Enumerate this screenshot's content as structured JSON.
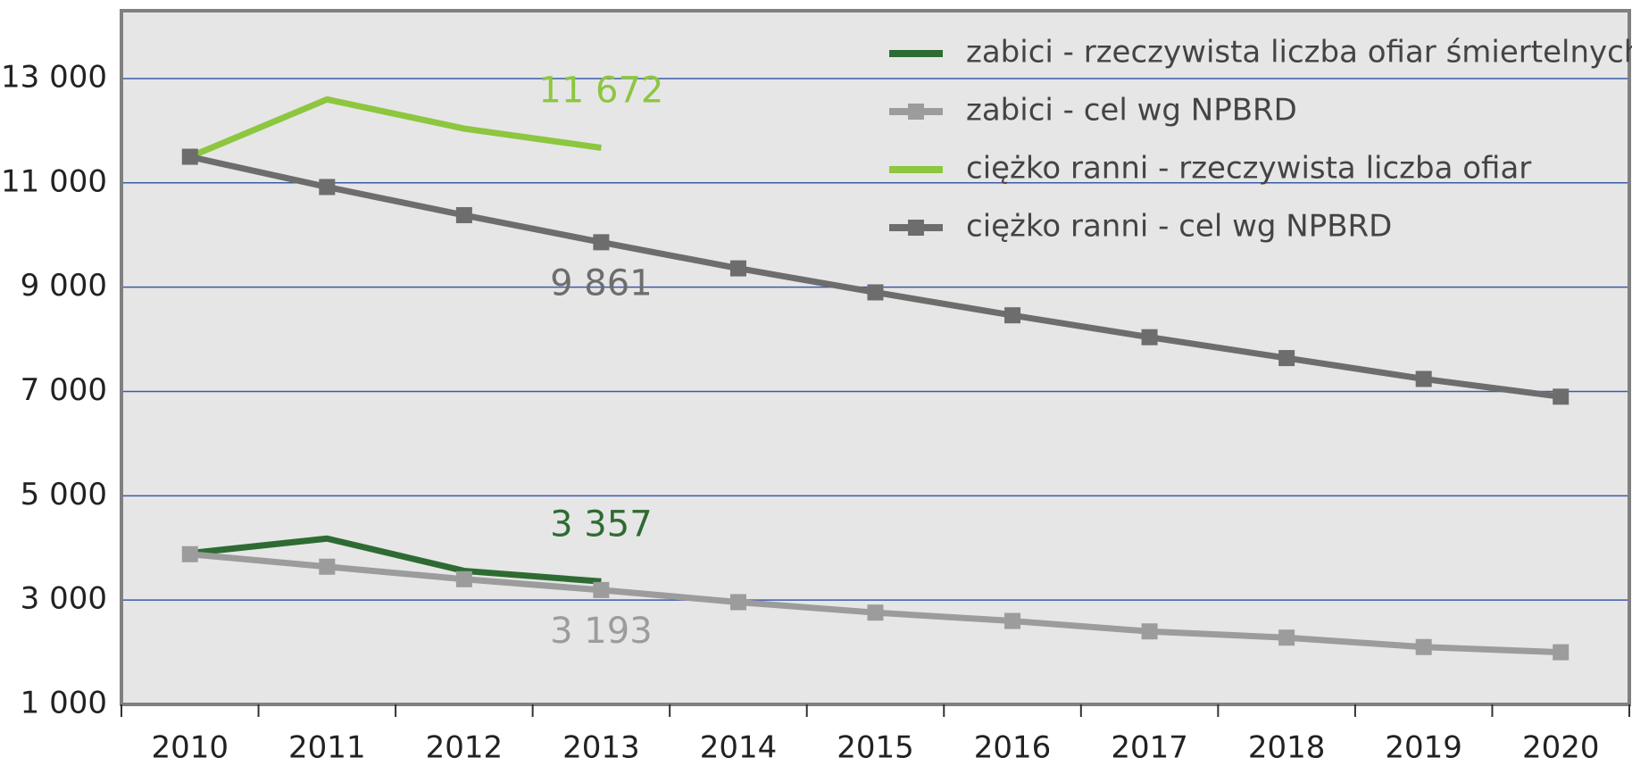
{
  "chart_data": {
    "type": "line",
    "categories": [
      "2010",
      "2011",
      "2012",
      "2013",
      "2014",
      "2015",
      "2016",
      "2017",
      "2018",
      "2019",
      "2020"
    ],
    "series": [
      {
        "name": "zabici - rzeczywista liczba ofiar śmiertelnych",
        "color": "#2e6b33",
        "marker": false,
        "values": [
          3900,
          4180,
          3560,
          3357,
          null,
          null,
          null,
          null,
          null,
          null,
          null
        ],
        "value_labels": [
          null,
          null,
          null,
          "3 357",
          null,
          null,
          null,
          null,
          null,
          null,
          null
        ]
      },
      {
        "name": "zabici - cel wg NPBRD",
        "color": "#9c9c9c",
        "marker": true,
        "values": [
          3880,
          3640,
          3400,
          3193,
          2960,
          2760,
          2600,
          2400,
          2280,
          2100,
          2000
        ],
        "value_labels": [
          null,
          null,
          null,
          "3 193",
          null,
          null,
          null,
          null,
          null,
          null,
          null
        ]
      },
      {
        "name": "ciężko ranni - rzeczywista liczba ofiar",
        "color": "#8dc63f",
        "marker": false,
        "values": [
          11500,
          12600,
          12040,
          11672,
          null,
          null,
          null,
          null,
          null,
          null,
          null
        ],
        "value_labels": [
          null,
          null,
          null,
          "11 672",
          null,
          null,
          null,
          null,
          null,
          null,
          null
        ]
      },
      {
        "name": "ciężko ranni - cel wg NPBRD",
        "color": "#6d6d6d",
        "marker": true,
        "values": [
          11500,
          10920,
          10380,
          9861,
          9360,
          8900,
          8460,
          8040,
          7640,
          7240,
          6900
        ],
        "value_labels": [
          null,
          null,
          null,
          "9 861",
          null,
          null,
          null,
          null,
          null,
          null,
          null
        ]
      }
    ],
    "ylim": [
      1000,
      14300
    ],
    "yticks": [
      {
        "value": 1000,
        "label": "1 000"
      },
      {
        "value": 3000,
        "label": "3 000"
      },
      {
        "value": 5000,
        "label": "5 000"
      },
      {
        "value": 7000,
        "label": "7 000"
      },
      {
        "value": 9000,
        "label": "9 000"
      },
      {
        "value": 11000,
        "label": "11 000"
      },
      {
        "value": 13000,
        "label": "13 000"
      }
    ],
    "grid": true,
    "legend": "top-right"
  }
}
